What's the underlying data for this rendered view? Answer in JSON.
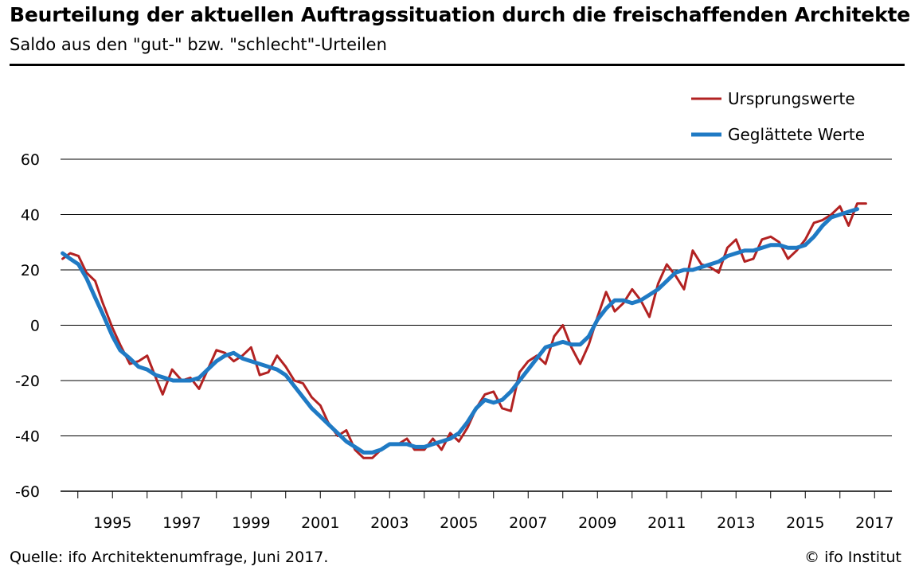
{
  "header": {
    "title": "Beurteilung der aktuellen Auftragssituation durch die freischaffenden Architekten",
    "subtitle": "Saldo aus den \"gut-\" bzw. \"schlecht\"-Urteilen"
  },
  "footer": {
    "source": "Quelle: ifo Architektenumfrage, Juni 2017.",
    "copyright": "© ifo Institut"
  },
  "chart_data": {
    "type": "line",
    "title": "Beurteilung der aktuellen Auftragssituation durch die freischaffenden Architekten",
    "subtitle": "Saldo aus den \"gut-\" bzw. \"schlecht\"-Urteilen",
    "xlabel": "",
    "ylabel": "",
    "ylim": [
      -60,
      60
    ],
    "yticks": [
      60,
      40,
      20,
      0,
      -20,
      -40,
      -60
    ],
    "xlim": [
      1993.5,
      2017.5
    ],
    "xticks": [
      1995,
      1997,
      1999,
      2001,
      2003,
      2005,
      2007,
      2009,
      2011,
      2013,
      2015,
      2017
    ],
    "grid": "horizontal",
    "legend": "top-right",
    "colors": {
      "raw": "#b22222",
      "smooth": "#1f7ac4"
    },
    "series": [
      {
        "name": "Ursprungswerte",
        "points": [
          [
            1993.56,
            24
          ],
          [
            1993.78,
            26
          ],
          [
            1994.02,
            25
          ],
          [
            1994.25,
            19
          ],
          [
            1994.5,
            16
          ],
          [
            1994.72,
            8
          ],
          [
            1995.0,
            -1
          ],
          [
            1995.22,
            -7
          ],
          [
            1995.5,
            -14
          ],
          [
            1995.75,
            -13
          ],
          [
            1996.0,
            -11
          ],
          [
            1996.22,
            -18
          ],
          [
            1996.45,
            -25
          ],
          [
            1996.72,
            -16
          ],
          [
            1997.0,
            -20
          ],
          [
            1997.25,
            -19
          ],
          [
            1997.5,
            -23
          ],
          [
            1997.75,
            -16
          ],
          [
            1998.0,
            -9
          ],
          [
            1998.25,
            -10
          ],
          [
            1998.5,
            -13
          ],
          [
            1998.75,
            -11
          ],
          [
            1999.0,
            -8
          ],
          [
            1999.25,
            -18
          ],
          [
            1999.5,
            -17
          ],
          [
            1999.75,
            -11
          ],
          [
            2000.0,
            -15
          ],
          [
            2000.25,
            -20
          ],
          [
            2000.5,
            -21
          ],
          [
            2000.75,
            -26
          ],
          [
            2001.0,
            -29
          ],
          [
            2001.22,
            -35
          ],
          [
            2001.5,
            -40
          ],
          [
            2001.75,
            -38
          ],
          [
            2002.0,
            -45
          ],
          [
            2002.25,
            -48
          ],
          [
            2002.5,
            -48
          ],
          [
            2002.75,
            -45
          ],
          [
            2003.0,
            -43
          ],
          [
            2003.25,
            -43
          ],
          [
            2003.5,
            -41
          ],
          [
            2003.72,
            -45
          ],
          [
            2004.0,
            -45
          ],
          [
            2004.25,
            -41
          ],
          [
            2004.5,
            -45
          ],
          [
            2004.75,
            -39
          ],
          [
            2005.0,
            -42
          ],
          [
            2005.25,
            -37
          ],
          [
            2005.5,
            -30
          ],
          [
            2005.75,
            -25
          ],
          [
            2006.0,
            -24
          ],
          [
            2006.25,
            -30
          ],
          [
            2006.5,
            -31
          ],
          [
            2006.75,
            -17
          ],
          [
            2007.0,
            -13
          ],
          [
            2007.25,
            -11
          ],
          [
            2007.5,
            -14
          ],
          [
            2007.75,
            -4
          ],
          [
            2008.0,
            0
          ],
          [
            2008.25,
            -8
          ],
          [
            2008.5,
            -14
          ],
          [
            2008.75,
            -7
          ],
          [
            2009.0,
            3
          ],
          [
            2009.25,
            12
          ],
          [
            2009.5,
            5
          ],
          [
            2009.75,
            8
          ],
          [
            2010.0,
            13
          ],
          [
            2010.25,
            9
          ],
          [
            2010.5,
            3
          ],
          [
            2010.75,
            15
          ],
          [
            2011.0,
            22
          ],
          [
            2011.25,
            18
          ],
          [
            2011.5,
            13
          ],
          [
            2011.75,
            27
          ],
          [
            2012.0,
            22
          ],
          [
            2012.25,
            21
          ],
          [
            2012.5,
            19
          ],
          [
            2012.75,
            28
          ],
          [
            2013.0,
            31
          ],
          [
            2013.25,
            23
          ],
          [
            2013.5,
            24
          ],
          [
            2013.75,
            31
          ],
          [
            2014.0,
            32
          ],
          [
            2014.25,
            30
          ],
          [
            2014.5,
            24
          ],
          [
            2014.75,
            27
          ],
          [
            2015.0,
            31
          ],
          [
            2015.25,
            37
          ],
          [
            2015.5,
            38
          ],
          [
            2015.75,
            40
          ],
          [
            2016.0,
            43
          ],
          [
            2016.25,
            36
          ],
          [
            2016.5,
            44
          ],
          [
            2016.75,
            44
          ]
        ]
      },
      {
        "name": "Geglättete Werte",
        "points": [
          [
            1993.56,
            26
          ],
          [
            1993.78,
            24
          ],
          [
            1994.02,
            22
          ],
          [
            1994.25,
            17
          ],
          [
            1994.5,
            10
          ],
          [
            1994.72,
            4
          ],
          [
            1995.0,
            -4
          ],
          [
            1995.22,
            -9
          ],
          [
            1995.5,
            -12
          ],
          [
            1995.75,
            -15
          ],
          [
            1996.0,
            -16
          ],
          [
            1996.25,
            -18
          ],
          [
            1996.5,
            -19
          ],
          [
            1996.75,
            -20
          ],
          [
            1997.0,
            -20
          ],
          [
            1997.25,
            -20
          ],
          [
            1997.5,
            -19
          ],
          [
            1997.75,
            -16
          ],
          [
            1998.0,
            -13
          ],
          [
            1998.25,
            -11
          ],
          [
            1998.5,
            -10
          ],
          [
            1998.75,
            -12
          ],
          [
            1999.0,
            -13
          ],
          [
            1999.25,
            -14
          ],
          [
            1999.5,
            -15
          ],
          [
            1999.75,
            -16
          ],
          [
            2000.0,
            -18
          ],
          [
            2000.25,
            -22
          ],
          [
            2000.5,
            -26
          ],
          [
            2000.75,
            -30
          ],
          [
            2001.0,
            -33
          ],
          [
            2001.25,
            -36
          ],
          [
            2001.5,
            -39
          ],
          [
            2001.75,
            -42
          ],
          [
            2002.0,
            -44
          ],
          [
            2002.25,
            -46
          ],
          [
            2002.5,
            -46
          ],
          [
            2002.75,
            -45
          ],
          [
            2003.0,
            -43
          ],
          [
            2003.25,
            -43
          ],
          [
            2003.5,
            -43
          ],
          [
            2003.75,
            -44
          ],
          [
            2004.0,
            -44
          ],
          [
            2004.25,
            -43
          ],
          [
            2004.5,
            -42
          ],
          [
            2004.75,
            -41
          ],
          [
            2005.0,
            -39
          ],
          [
            2005.25,
            -35
          ],
          [
            2005.5,
            -30
          ],
          [
            2005.75,
            -27
          ],
          [
            2006.0,
            -28
          ],
          [
            2006.25,
            -27
          ],
          [
            2006.5,
            -24
          ],
          [
            2006.75,
            -20
          ],
          [
            2007.0,
            -16
          ],
          [
            2007.25,
            -12
          ],
          [
            2007.5,
            -8
          ],
          [
            2007.75,
            -7
          ],
          [
            2008.0,
            -6
          ],
          [
            2008.25,
            -7
          ],
          [
            2008.5,
            -7
          ],
          [
            2008.75,
            -4
          ],
          [
            2009.0,
            2
          ],
          [
            2009.25,
            6
          ],
          [
            2009.5,
            9
          ],
          [
            2009.75,
            9
          ],
          [
            2010.0,
            8
          ],
          [
            2010.25,
            9
          ],
          [
            2010.5,
            11
          ],
          [
            2010.75,
            13
          ],
          [
            2011.0,
            16
          ],
          [
            2011.25,
            19
          ],
          [
            2011.5,
            20
          ],
          [
            2011.75,
            20
          ],
          [
            2012.0,
            21
          ],
          [
            2012.25,
            22
          ],
          [
            2012.5,
            23
          ],
          [
            2012.75,
            25
          ],
          [
            2013.0,
            26
          ],
          [
            2013.25,
            27
          ],
          [
            2013.5,
            27
          ],
          [
            2013.75,
            28
          ],
          [
            2014.0,
            29
          ],
          [
            2014.25,
            29
          ],
          [
            2014.5,
            28
          ],
          [
            2014.75,
            28
          ],
          [
            2015.0,
            29
          ],
          [
            2015.25,
            32
          ],
          [
            2015.5,
            36
          ],
          [
            2015.75,
            39
          ],
          [
            2016.0,
            40
          ],
          [
            2016.25,
            41
          ],
          [
            2016.5,
            42
          ]
        ]
      }
    ]
  }
}
